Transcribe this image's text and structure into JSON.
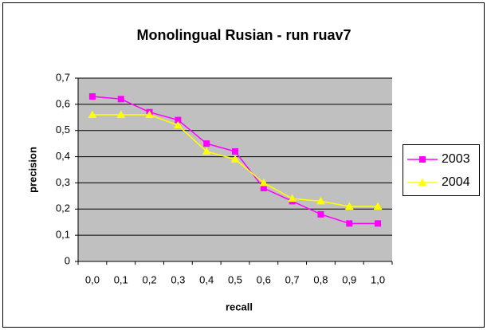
{
  "chart_data": {
    "type": "line",
    "title": "Monolingual Rusian - run ruav7",
    "x_label": "recall",
    "y_label": "precision",
    "categories": [
      "0,0",
      "0,1",
      "0,2",
      "0,3",
      "0,4",
      "0,5",
      "0,6",
      "0,7",
      "0,8",
      "0,9",
      "1,0"
    ],
    "series": [
      {
        "name": "2003",
        "color": "#ff00ff",
        "marker": "square",
        "values": [
          0.63,
          0.62,
          0.57,
          0.54,
          0.45,
          0.42,
          0.28,
          0.23,
          0.18,
          0.145,
          0.145
        ]
      },
      {
        "name": "2004",
        "color": "#ffff00",
        "marker": "triangle",
        "values": [
          0.56,
          0.56,
          0.56,
          0.52,
          0.42,
          0.39,
          0.3,
          0.24,
          0.23,
          0.21,
          0.21
        ]
      }
    ],
    "ylim": [
      0,
      0.7
    ],
    "yticks": [
      0,
      {
        "value": 0.1,
        "label": "0,1"
      },
      {
        "value": 0.2,
        "label": "0,2"
      },
      {
        "value": 0.3,
        "label": "0,3"
      },
      {
        "value": 0.4,
        "label": "0,4"
      },
      {
        "value": 0.5,
        "label": "0,5"
      },
      {
        "value": 0.6,
        "label": "0,6"
      },
      {
        "value": 0.7,
        "label": "0,7"
      }
    ],
    "grid": true,
    "legend": "right"
  }
}
